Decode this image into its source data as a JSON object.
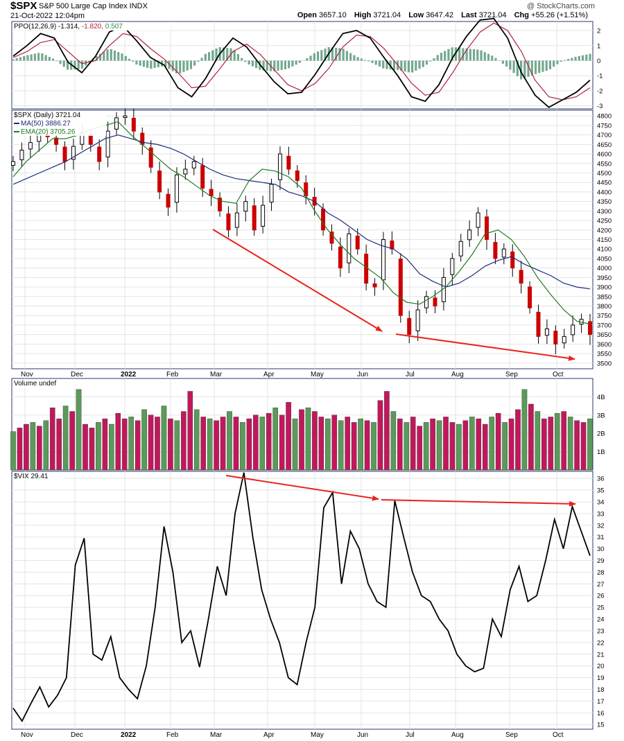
{
  "header": {
    "symbol": "$SPX",
    "description": "S&P 500 Large Cap Index  INDX",
    "date": "21-Oct-2022 12:04pm",
    "brand": "@ StockCharts.com",
    "open_label": "Open",
    "open": "3657.10",
    "high_label": "High",
    "high": "3721.04",
    "low_label": "Low",
    "low": "3647.42",
    "last_label": "Last",
    "last": "3721.04",
    "chg_label": "Chg",
    "chg": "+55.26 (+1.51%)"
  },
  "colors": {
    "up": "#2e7d32",
    "down": "#cc0000",
    "ma50": "#1a2b7a",
    "ema20": "#1f7a1f",
    "ppo_signal": "#b02040",
    "vol_up": "#5a9a5a",
    "vol_down": "#c2185b",
    "arrow": "#e8241c",
    "grid": "#e3e3e3"
  },
  "chart_data": [
    {
      "type": "line",
      "panel": "PPO",
      "legend": {
        "name": "PPO(12,26,9)",
        "ppo": "-1.314",
        "signal": "-1.820",
        "hist": "0.507"
      },
      "ylim": [
        -3,
        2.5
      ],
      "yticks": [
        2,
        1,
        0,
        -1,
        -2,
        -3
      ],
      "series": [
        {
          "name": "PPO",
          "values": [
            0.3,
            1.0,
            1.8,
            1.5,
            -0.1,
            -0.8,
            0.3,
            1.9,
            2.3,
            1.3,
            0.2,
            -0.3,
            -1.8,
            -2.4,
            -1.2,
            0.4,
            1.5,
            0.9,
            -0.3,
            -1.4,
            -2.2,
            -2.1,
            -0.9,
            0.5,
            1.8,
            2.0,
            1.5,
            0.2,
            -1.0,
            -2.4,
            -2.7,
            -1.6,
            0.2,
            1.6,
            2.7,
            2.8,
            1.5,
            -0.8,
            -2.3,
            -3.1,
            -2.6,
            -2.1,
            -1.3
          ]
        },
        {
          "name": "Signal",
          "values": [
            0.2,
            0.6,
            1.2,
            1.4,
            0.6,
            -0.2,
            0.0,
            1.0,
            1.8,
            1.6,
            0.8,
            0.1,
            -0.8,
            -1.8,
            -1.7,
            -0.6,
            0.6,
            1.1,
            0.4,
            -0.6,
            -1.6,
            -2.0,
            -1.5,
            -0.5,
            0.9,
            1.7,
            1.6,
            0.8,
            -0.3,
            -1.5,
            -2.3,
            -2.1,
            -0.8,
            0.7,
            1.9,
            2.5,
            2.0,
            0.6,
            -1.3,
            -2.4,
            -2.6,
            -2.4,
            -1.8
          ]
        }
      ]
    },
    {
      "type": "candlestick",
      "panel": "Price",
      "legend": {
        "name": "$SPX (Daily) 3721.04",
        "ma": "MA(50) 3886.27",
        "ema": "EMA(20) 3705.26"
      },
      "ylim": [
        3470,
        4830
      ],
      "yticks": [
        4800,
        4750,
        4700,
        4650,
        4600,
        4550,
        4500,
        4450,
        4400,
        4350,
        4300,
        4250,
        4200,
        4150,
        4100,
        4050,
        4000,
        3950,
        3900,
        3850,
        3800,
        3750,
        3700,
        3650,
        3600,
        3550,
        3500
      ],
      "series": [
        {
          "name": "Close",
          "values": [
            4560,
            4620,
            4660,
            4700,
            4690,
            4650,
            4560,
            4640,
            4710,
            4650,
            4560,
            4720,
            4790,
            4800,
            4720,
            4650,
            4530,
            4400,
            4320,
            4490,
            4520,
            4560,
            4420,
            4380,
            4300,
            4200,
            4290,
            4350,
            4200,
            4330,
            4440,
            4600,
            4520,
            4460,
            4380,
            4330,
            4200,
            4130,
            4000,
            4180,
            4100,
            3920,
            3900,
            4150,
            4100,
            3750,
            3650,
            3780,
            3850,
            3800,
            3950,
            4050,
            4140,
            4200,
            4290,
            4150,
            4050,
            4100,
            4000,
            3920,
            3790,
            3640,
            3680,
            3600,
            3640,
            3700,
            3730,
            3650
          ]
        },
        {
          "name": "MA(50)",
          "values": [
            4440,
            4470,
            4500,
            4530,
            4560,
            4600,
            4640,
            4680,
            4700,
            4680,
            4660,
            4650,
            4630,
            4600,
            4560,
            4520,
            4490,
            4470,
            4460,
            4450,
            4440,
            4400,
            4380,
            4350,
            4290,
            4250,
            4200,
            4150,
            4120,
            4100,
            4050,
            3970,
            3930,
            3900,
            3920,
            3960,
            4010,
            4040,
            4060,
            4020,
            3990,
            3960,
            3920,
            3900,
            3890
          ]
        },
        {
          "name": "EMA(20)",
          "values": [
            4480,
            4560,
            4620,
            4680,
            4680,
            4700,
            4730,
            4750,
            4770,
            4700,
            4640,
            4580,
            4520,
            4480,
            4430,
            4380,
            4350,
            4340,
            4460,
            4520,
            4510,
            4480,
            4420,
            4300,
            4200,
            4120,
            4050,
            4000,
            3950,
            3870,
            3820,
            3810,
            3850,
            3900,
            3980,
            4070,
            4180,
            4200,
            4150,
            4060,
            3950,
            3860,
            3780,
            3720,
            3705
          ]
        }
      ]
    },
    {
      "type": "bar",
      "panel": "Volume",
      "legend": {
        "name": "Volume undef"
      },
      "ylim": [
        0,
        5
      ],
      "yticks_labels": [
        "4B",
        "3B",
        "2B",
        "1B"
      ],
      "yticks": [
        4,
        3,
        2,
        1
      ],
      "values": [
        2.1,
        2.3,
        2.5,
        2.6,
        2.4,
        2.7,
        3.4,
        2.8,
        3.5,
        3.2,
        4.4,
        2.5,
        2.3,
        2.6,
        2.8,
        2.5,
        3.1,
        2.8,
        2.9,
        2.7,
        3.3,
        3.0,
        2.9,
        3.5,
        2.8,
        2.7,
        3.2,
        4.3,
        3.3,
        2.9,
        2.8,
        2.7,
        2.9,
        3.2,
        2.9,
        2.6,
        2.8,
        3.0,
        2.9,
        3.1,
        3.4,
        3.0,
        3.7,
        2.8,
        3.3,
        3.4,
        3.2,
        2.9,
        2.8,
        3.0,
        2.7,
        2.9,
        2.6,
        2.8,
        2.7,
        2.6,
        3.8,
        4.3,
        3.2,
        2.8,
        2.6,
        2.9,
        2.4,
        2.6,
        2.8,
        2.7,
        2.9,
        2.6,
        2.5,
        2.7,
        2.9,
        2.8,
        2.5,
        2.9,
        3.1,
        2.6,
        2.8,
        3.3,
        4.4,
        3.6,
        3.2,
        2.8,
        2.9,
        3.1,
        3.2,
        2.9,
        2.7,
        2.6,
        2.8
      ]
    },
    {
      "type": "line",
      "panel": "VIX",
      "legend": {
        "name": "$VIX 29.41"
      },
      "ylim": [
        14.8,
        36.5
      ],
      "yticks": [
        36,
        35,
        34,
        33,
        32,
        31,
        30,
        29,
        28,
        27,
        26,
        25,
        24,
        23,
        22,
        21,
        20,
        19,
        18,
        17,
        16,
        15
      ],
      "series": [
        {
          "name": "$VIX",
          "values": [
            16.4,
            15.3,
            16.8,
            18.2,
            16.5,
            17.5,
            19.0,
            28.6,
            30.9,
            21.0,
            20.5,
            22.5,
            19.0,
            18.0,
            17.2,
            20.0,
            25.0,
            31.9,
            28.0,
            22.0,
            23.0,
            19.9,
            24.0,
            28.5,
            26.0,
            33.0,
            36.5,
            31.0,
            26.5,
            24.0,
            22.0,
            19.0,
            18.4,
            22.0,
            25.0,
            33.5,
            34.8,
            27.0,
            31.5,
            30.0,
            27.0,
            25.5,
            25.0,
            34.1,
            31.0,
            28.0,
            26.0,
            25.5,
            24.0,
            23.0,
            21.0,
            20.0,
            19.5,
            19.8,
            24.0,
            22.5,
            26.5,
            28.5,
            25.5,
            26.0,
            29.0,
            32.5,
            30.0,
            33.6,
            31.5,
            29.4
          ]
        }
      ]
    }
  ],
  "month_labels": [
    "Nov",
    "Dec",
    "2022",
    "Feb",
    "Mar",
    "Apr",
    "May",
    "Jun",
    "Jul",
    "Aug",
    "Sep",
    "Oct"
  ]
}
